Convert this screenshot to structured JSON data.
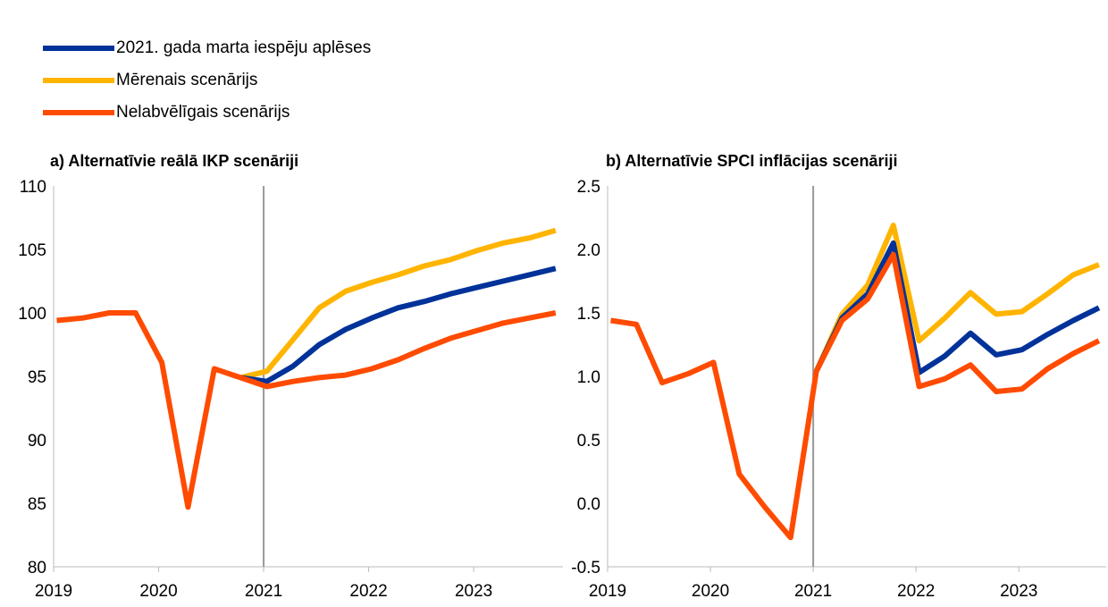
{
  "legend": [
    {
      "label": "2021. gada marta iespēju aplēses",
      "color": "#003299"
    },
    {
      "label": "Mērenais scenārijs",
      "color": "#FFB400"
    },
    {
      "label": "Nelabvēlīgais scenārijs",
      "color": "#FF4B00"
    }
  ],
  "chart_data": [
    {
      "type": "line",
      "title": "a) Alternatīvie reālā IKP scenāriji",
      "x_tick_labels": [
        "2019",
        "2020",
        "2021",
        "2022",
        "2023"
      ],
      "y_tick_labels": [
        "80",
        "85",
        "90",
        "95",
        "100",
        "105",
        "110"
      ],
      "ylim": [
        80,
        110
      ],
      "x": [
        "2019Q1",
        "2019Q2",
        "2019Q3",
        "2019Q4",
        "2020Q1",
        "2020Q2",
        "2020Q3",
        "2020Q4",
        "2021Q1",
        "2021Q2",
        "2021Q3",
        "2021Q4",
        "2022Q1",
        "2022Q2",
        "2022Q3",
        "2022Q4",
        "2023Q1",
        "2023Q2",
        "2023Q3",
        "2023Q4"
      ],
      "series": [
        {
          "name": "Nelabvēlīgais scenārijs",
          "values": [
            99.4,
            99.6,
            100.0,
            100.0,
            96.1,
            84.7,
            95.6,
            94.9,
            94.2,
            94.6,
            94.9,
            95.1,
            95.6,
            96.3,
            97.2,
            98.0,
            98.6,
            99.2,
            99.6,
            100.0
          ]
        },
        {
          "name": "Mērenais scenārijs",
          "values": [
            null,
            null,
            null,
            null,
            null,
            null,
            null,
            94.9,
            95.4,
            97.9,
            100.4,
            101.7,
            102.4,
            103.0,
            103.7,
            104.2,
            104.9,
            105.5,
            105.9,
            106.5
          ]
        },
        {
          "name": "2021. gada marta iespēju aplēses",
          "values": [
            null,
            null,
            null,
            null,
            null,
            null,
            null,
            94.9,
            94.6,
            95.8,
            97.5,
            98.7,
            99.6,
            100.4,
            100.9,
            101.5,
            102.0,
            102.5,
            103.0,
            103.5
          ]
        }
      ]
    },
    {
      "type": "line",
      "title": "b) Alternatīvie SPCI inflācijas scenāriji",
      "x_tick_labels": [
        "2019",
        "2020",
        "2021",
        "2022",
        "2023"
      ],
      "y_tick_labels": [
        "-0.5",
        "0.0",
        "0.5",
        "1.0",
        "1.5",
        "2.0",
        "2.5"
      ],
      "ylim": [
        -0.5,
        2.5
      ],
      "x": [
        "2019Q1",
        "2019Q2",
        "2019Q3",
        "2019Q4",
        "2020Q1",
        "2020Q2",
        "2020Q3",
        "2020Q4",
        "2021Q1",
        "2021Q2",
        "2021Q3",
        "2021Q4",
        "2022Q1",
        "2022Q2",
        "2022Q3",
        "2022Q4",
        "2023Q1",
        "2023Q2",
        "2023Q3",
        "2023Q4"
      ],
      "series": [
        {
          "name": "Nelabvēlīgais scenārijs",
          "values": [
            1.44,
            1.41,
            0.95,
            1.02,
            1.11,
            0.23,
            -0.03,
            -0.27,
            1.04,
            1.44,
            1.61,
            1.96,
            0.92,
            0.98,
            1.09,
            0.88,
            0.9,
            1.06,
            1.18,
            1.28
          ]
        },
        {
          "name": "Mērenais scenārijs",
          "values": [
            null,
            null,
            null,
            null,
            null,
            null,
            null,
            null,
            1.04,
            1.49,
            1.72,
            2.19,
            1.28,
            1.46,
            1.66,
            1.49,
            1.51,
            1.65,
            1.8,
            1.88
          ]
        },
        {
          "name": "2021. gada marta iespēju aplēses",
          "values": [
            null,
            null,
            null,
            null,
            null,
            null,
            null,
            null,
            1.04,
            1.46,
            1.65,
            2.05,
            1.03,
            1.16,
            1.34,
            1.17,
            1.21,
            1.33,
            1.44,
            1.54
          ]
        }
      ]
    }
  ]
}
